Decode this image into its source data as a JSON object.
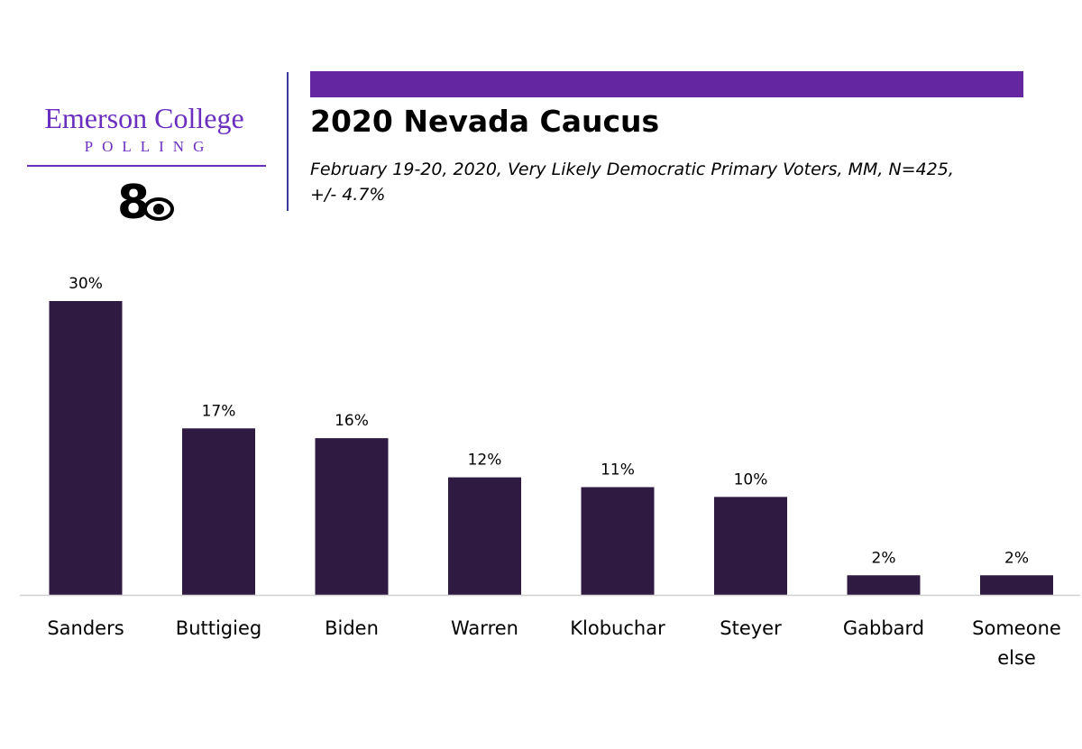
{
  "branding": {
    "logo_name": "Emerson College",
    "logo_sub": "POLLING",
    "station_mark": "CBS 8",
    "logo_color": "#6a2fbf",
    "bar_color": "#6527a1"
  },
  "chart_data": {
    "type": "bar",
    "title": "2020 Nevada Caucus",
    "subtitle_lines": [
      "February 19-20, 2020, Very Likely Democratic Primary Voters, MM,  N=425,",
      "+/- 4.7%"
    ],
    "categories": [
      "Sanders",
      "Buttigieg",
      "Biden",
      "Warren",
      "Klobuchar",
      "Steyer",
      "Gabbard",
      "Someone else"
    ],
    "values": [
      30,
      17,
      16,
      12,
      11,
      10,
      2,
      2
    ],
    "value_labels": [
      "30%",
      "17%",
      "16%",
      "12%",
      "11%",
      "10%",
      "2%",
      "2%"
    ],
    "xlabel": "",
    "ylabel": "",
    "ylim": [
      0,
      30
    ],
    "grid": false,
    "legend": "none",
    "bar_color": "#2f1a42"
  }
}
